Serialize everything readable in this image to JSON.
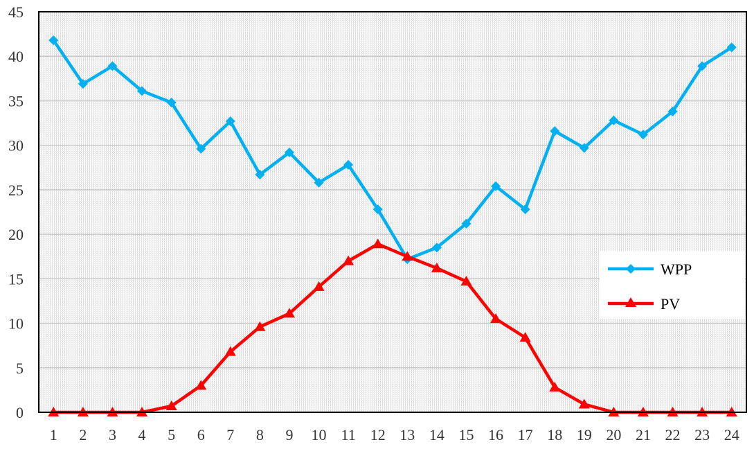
{
  "chart_data": {
    "type": "line",
    "title": "",
    "xlabel": "",
    "ylabel": "",
    "x": [
      "1",
      "2",
      "3",
      "4",
      "5",
      "6",
      "7",
      "8",
      "9",
      "10",
      "11",
      "12",
      "13",
      "14",
      "15",
      "16",
      "17",
      "18",
      "19",
      "20",
      "21",
      "22",
      "23",
      "24"
    ],
    "ylim": [
      0,
      45
    ],
    "yticks": [
      0,
      5,
      10,
      15,
      20,
      25,
      30,
      35,
      40,
      45
    ],
    "grid": true,
    "legend_position": "right",
    "series": [
      {
        "name": "WPP",
        "color": "#00b0f0",
        "marker": "diamond",
        "values": [
          41.8,
          36.9,
          38.9,
          36.1,
          34.8,
          29.6,
          32.7,
          26.7,
          29.2,
          25.8,
          27.8,
          22.8,
          17.2,
          18.5,
          21.2,
          25.4,
          22.8,
          31.6,
          29.7,
          32.8,
          31.2,
          33.8,
          38.9,
          41.0
        ]
      },
      {
        "name": "PV",
        "color": "#ff0000",
        "marker": "triangle",
        "values": [
          0,
          0,
          0,
          0,
          0.7,
          3.0,
          6.8,
          9.6,
          11.1,
          14.1,
          17.0,
          18.9,
          17.5,
          16.2,
          14.7,
          10.5,
          8.4,
          2.8,
          0.9,
          0,
          0,
          0,
          0,
          0
        ]
      }
    ]
  }
}
